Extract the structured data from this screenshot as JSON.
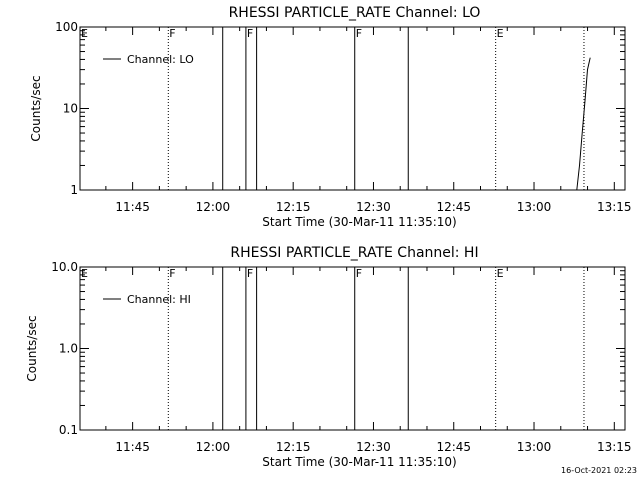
{
  "chart_data": [
    {
      "type": "line",
      "title": "RHESSI PARTICLE_RATE Channel: LO",
      "xlabel": "Start Time (30-Mar-11 11:35:10)",
      "ylabel": "Counts/sec",
      "yscale": "log",
      "ylim": [
        1,
        100
      ],
      "xlim": [
        "11:35:10",
        "13:17:00"
      ],
      "x_ticks": [
        "11:45",
        "12:00",
        "12:15",
        "12:30",
        "12:45",
        "13:00",
        "13:15"
      ],
      "y_ticks": [
        "1",
        "10",
        "100"
      ],
      "legend": {
        "entries": [
          "Channel: LO"
        ],
        "placement": "top-left"
      },
      "grid": false,
      "series": [
        {
          "name": "Channel: LO",
          "x": [
            "13:08:00",
            "13:08:30",
            "13:09:00",
            "13:09:30",
            "13:10:00",
            "13:10:30"
          ],
          "y": [
            1,
            2,
            5,
            12,
            30,
            42
          ]
        }
      ],
      "markers": [
        {
          "label": "E",
          "time": "11:35:10",
          "style": "dotted"
        },
        {
          "label": "F",
          "time": "11:51:40",
          "style": "dotted"
        },
        {
          "label": "",
          "time": "12:01:50",
          "style": "solid"
        },
        {
          "label": "F",
          "time": "12:06:10",
          "style": "solid"
        },
        {
          "label": "",
          "time": "12:08:10",
          "style": "solid"
        },
        {
          "label": "F",
          "time": "12:26:30",
          "style": "solid"
        },
        {
          "label": "",
          "time": "12:36:30",
          "style": "solid"
        },
        {
          "label": "E",
          "time": "12:52:50",
          "style": "dotted"
        },
        {
          "label": "",
          "time": "13:09:20",
          "style": "dotted"
        }
      ]
    },
    {
      "type": "line",
      "title": "RHESSI PARTICLE_RATE Channel: HI",
      "xlabel": "Start Time (30-Mar-11 11:35:10)",
      "ylabel": "Counts/sec",
      "yscale": "log",
      "ylim": [
        0.1,
        10
      ],
      "xlim": [
        "11:35:10",
        "13:17:00"
      ],
      "x_ticks": [
        "11:45",
        "12:00",
        "12:15",
        "12:30",
        "12:45",
        "13:00",
        "13:15"
      ],
      "y_ticks": [
        "0.1",
        "1.0",
        "10.0"
      ],
      "legend": {
        "entries": [
          "Channel: HI"
        ],
        "placement": "top-left"
      },
      "grid": false,
      "series": [
        {
          "name": "Channel: HI",
          "x": [],
          "y": []
        }
      ],
      "markers": [
        {
          "label": "E",
          "time": "11:35:10",
          "style": "dotted"
        },
        {
          "label": "F",
          "time": "11:51:40",
          "style": "dotted"
        },
        {
          "label": "",
          "time": "12:01:50",
          "style": "solid"
        },
        {
          "label": "F",
          "time": "12:06:10",
          "style": "solid"
        },
        {
          "label": "",
          "time": "12:08:10",
          "style": "solid"
        },
        {
          "label": "F",
          "time": "12:26:30",
          "style": "solid"
        },
        {
          "label": "",
          "time": "12:36:30",
          "style": "solid"
        },
        {
          "label": "E",
          "time": "12:52:50",
          "style": "dotted"
        },
        {
          "label": "",
          "time": "13:09:20",
          "style": "dotted"
        }
      ]
    }
  ],
  "footer": {
    "timestamp": "16-Oct-2021 02:23"
  }
}
